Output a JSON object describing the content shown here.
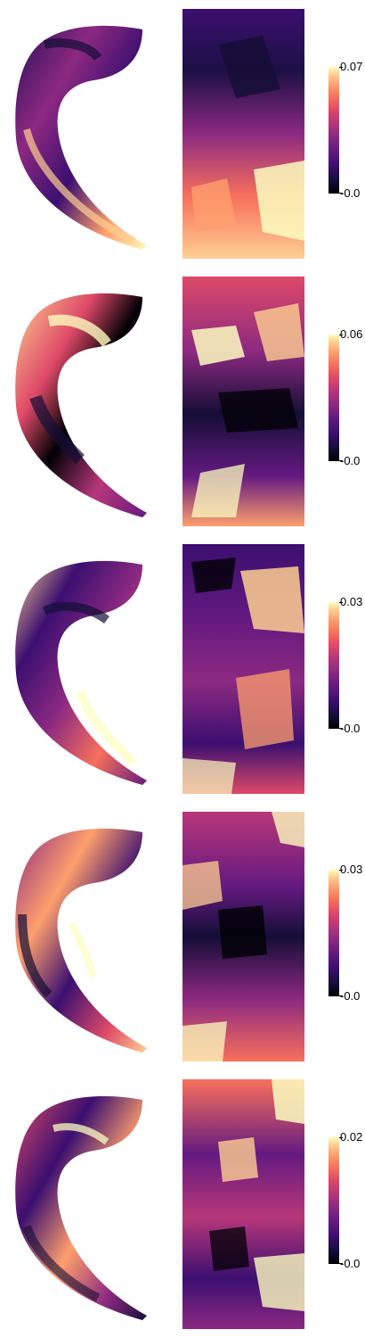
{
  "panels": [
    {
      "max_label": "0.07",
      "min_label": "-0.0"
    },
    {
      "max_label": "0.06",
      "min_label": "-0.0"
    },
    {
      "max_label": "0.03",
      "min_label": "-0.0"
    },
    {
      "max_label": "0.03",
      "min_label": "-0.0"
    },
    {
      "max_label": "0.02",
      "min_label": "-0.0"
    }
  ],
  "colormap": {
    "name": "magma",
    "stops": [
      "#000004",
      "#140e36",
      "#3b0f70",
      "#641a80",
      "#8c2981",
      "#b73779",
      "#de4968",
      "#f7705c",
      "#fe9f6d",
      "#fecf92",
      "#fcfdbf"
    ]
  }
}
